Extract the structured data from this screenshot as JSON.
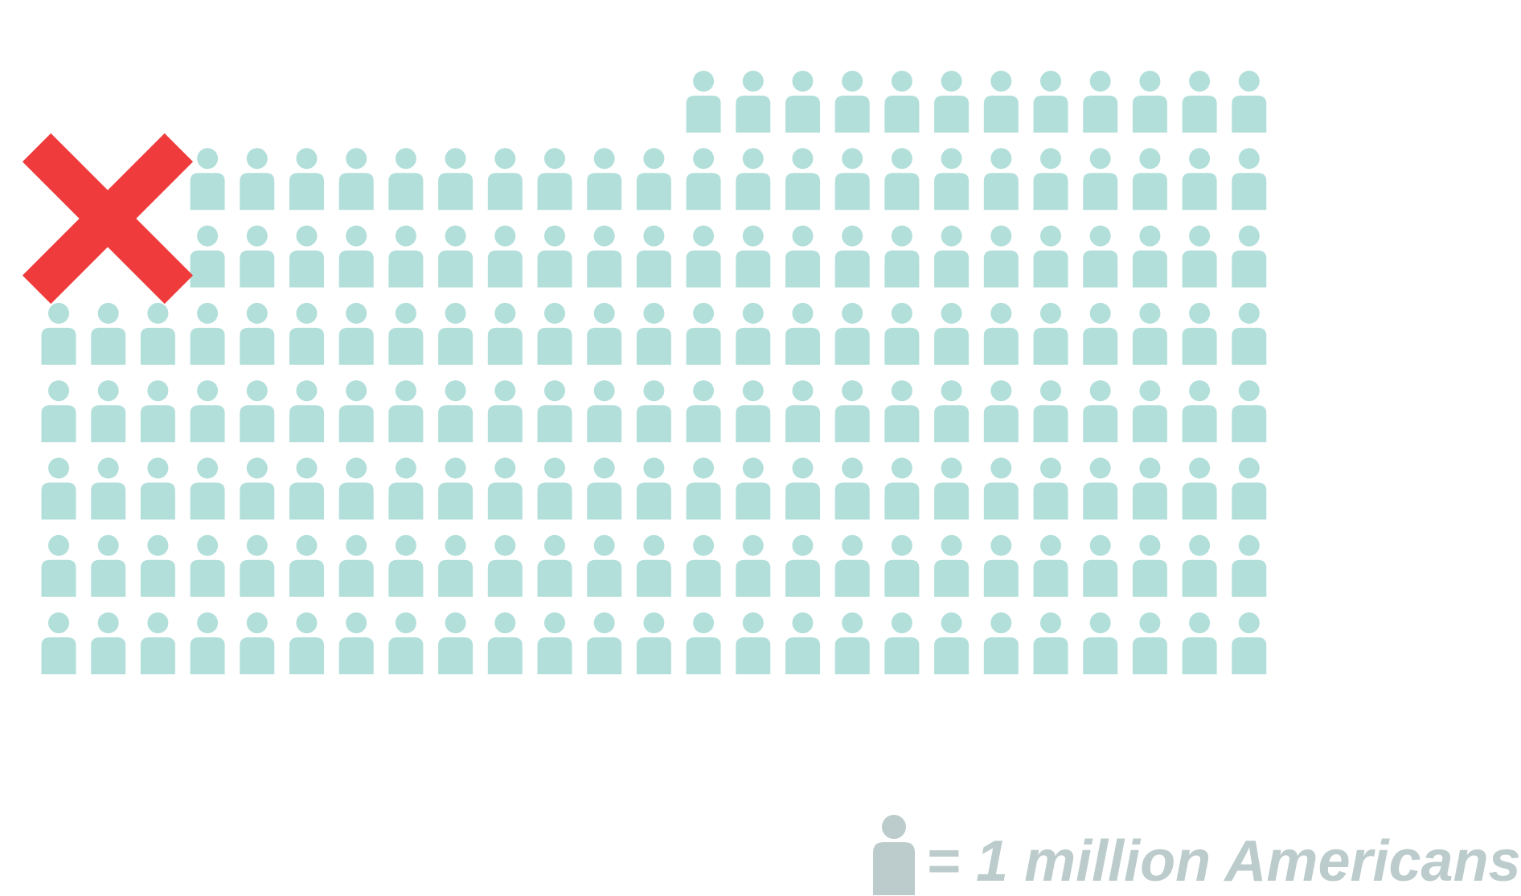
{
  "chart_data": {
    "type": "pictogram",
    "unit_label": "= 1 million Americans",
    "unit_value": 1,
    "unit_noun": "million Americans",
    "rows": [
      {
        "row": 1,
        "icons": 12,
        "struck_out": 0
      },
      {
        "row": 2,
        "icons": 22,
        "struck_out": 0
      },
      {
        "row": 3,
        "icons": 22,
        "struck_out": 0
      },
      {
        "row": 4,
        "icons": 25,
        "struck_out": 0
      },
      {
        "row": 5,
        "icons": 25,
        "struck_out": 0
      },
      {
        "row": 6,
        "icons": 25,
        "struck_out": 0
      },
      {
        "row": 7,
        "icons": 25,
        "struck_out": 0
      },
      {
        "row": 8,
        "icons": 25,
        "struck_out": 0
      }
    ],
    "marker": {
      "symbol": "x",
      "meaning": "removed"
    },
    "colors": {
      "person": "#b2dfda",
      "legend": "#bccbcb",
      "x_mark": "#ef3b3b",
      "background": "#ffffff"
    }
  },
  "legend": {
    "text": "= 1 million Americans",
    "icon": "person-icon"
  }
}
